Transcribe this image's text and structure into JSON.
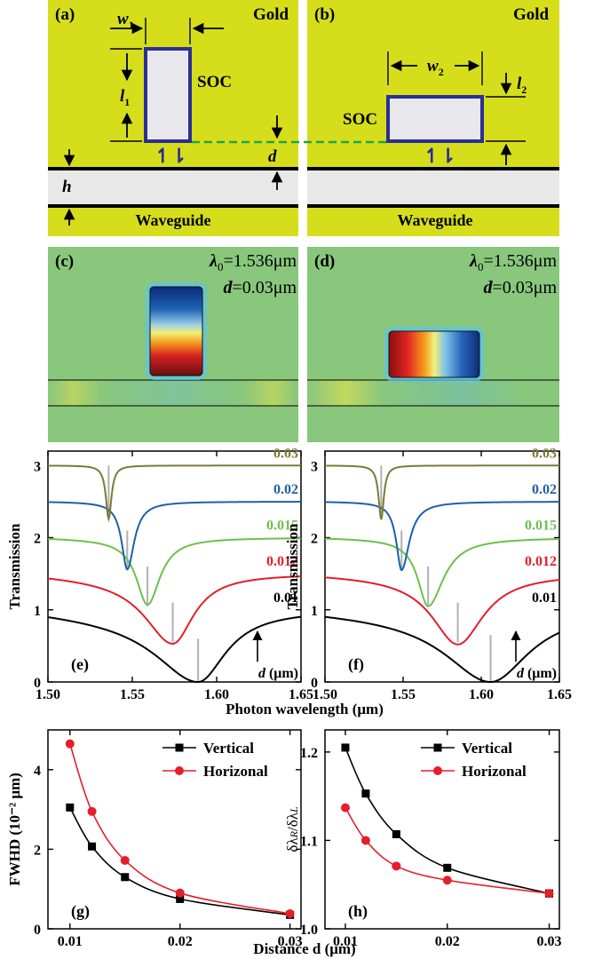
{
  "colors": {
    "gold": "#d6de1c",
    "soc_border": "#2c2f92",
    "gap_line": "#1aa84a",
    "field_bg": "#88c77c",
    "grey_tick": "#b0b0b0",
    "black": "#000000",
    "red": "#e41e2a",
    "green": "#6cc04a",
    "blue": "#1f5fae",
    "olive": "#7d7a36"
  },
  "panel_a": {
    "tag": "(a)",
    "material": "Gold",
    "w_sym": "w",
    "w_sub": "1",
    "l_sym": "l",
    "l_sub": "1",
    "soc": "SOC",
    "h": "h",
    "d": "d",
    "waveguide": "Waveguide",
    "arrows": "↿⇂"
  },
  "panel_b": {
    "tag": "(b)",
    "material": "Gold",
    "w_sym": "w",
    "w_sub": "2",
    "l_sym": "l",
    "l_sub": "2",
    "soc": "SOC",
    "waveguide": "Waveguide",
    "arrows": "↿⇂"
  },
  "panel_c": {
    "tag": "(c)",
    "lambda_sym": "λ",
    "lambda_sub": "0",
    "lambda_val": "=1.536μm",
    "d_sym": "d",
    "d_val": "=0.03μm"
  },
  "panel_d": {
    "tag": "(d)",
    "lambda_sym": "λ",
    "lambda_sub": "0",
    "lambda_val": "=1.536μm",
    "d_sym": "d",
    "d_val": "=0.03μm"
  },
  "shared_xlabel": "Photon wavelength (μm)",
  "shared_distance_label": "Distance d (μm)",
  "chart_data": [
    {
      "panel": "(e)",
      "type": "line",
      "ylabel": "Transmission",
      "xlim": [
        1.5,
        1.65
      ],
      "ylim": [
        0,
        3.2
      ],
      "xticks": [
        "1.50",
        "1.55",
        "1.60",
        "1.65"
      ],
      "yticks": [
        "0",
        "1",
        "2",
        "3"
      ],
      "annotation": "d (μm)",
      "series": [
        {
          "name": "0.01",
          "color": "#000000",
          "offset": 0,
          "baseline": 1.0,
          "left_dip": 0.15,
          "center": 1.589,
          "width_left": 0.03,
          "width_right": 0.02,
          "min": 0.0
        },
        {
          "name": "0.012",
          "color": "#e41e2a",
          "offset": 0.5,
          "baseline": 1.0,
          "left_dip": 0.08,
          "center": 1.574,
          "width_left": 0.02,
          "width_right": 0.015,
          "min": 0.03
        },
        {
          "name": "0.015",
          "color": "#6cc04a",
          "offset": 1.0,
          "baseline": 1.0,
          "left_dip": 0.03,
          "center": 1.559,
          "width_left": 0.008,
          "width_right": 0.009,
          "min": 0.07
        },
        {
          "name": "0.02",
          "color": "#1f5fae",
          "offset": 1.5,
          "baseline": 1.0,
          "left_dip": 0.01,
          "center": 1.547,
          "width_left": 0.004,
          "width_right": 0.005,
          "min": 0.06
        },
        {
          "name": "0.03",
          "color": "#7d7a36",
          "offset": 2.0,
          "baseline": 1.0,
          "left_dip": 0.0,
          "center": 1.536,
          "width_left": 0.002,
          "width_right": 0.002,
          "min": 0.26
        }
      ],
      "markers": [
        {
          "x": 1.536,
          "y_from": 2.3,
          "y_to": 3.0
        },
        {
          "x": 1.547,
          "y_from": 1.55,
          "y_to": 2.1
        },
        {
          "x": 1.559,
          "y_from": 1.05,
          "y_to": 1.6
        },
        {
          "x": 1.574,
          "y_from": 0.55,
          "y_to": 1.1
        },
        {
          "x": 1.589,
          "y_from": 0.0,
          "y_to": 0.6
        }
      ]
    },
    {
      "panel": "(f)",
      "type": "line",
      "ylabel": "Transmission",
      "xlim": [
        1.5,
        1.65
      ],
      "ylim": [
        0,
        3.2
      ],
      "xticks": [
        "1.50",
        "1.55",
        "1.60",
        "1.65"
      ],
      "yticks": [
        "0",
        "1",
        "2",
        "3"
      ],
      "annotation": "d (μm)",
      "series": [
        {
          "name": "0.01",
          "color": "#000000",
          "offset": 0,
          "baseline": 1.0,
          "left_dip": 0.1,
          "center": 1.606,
          "width_left": 0.035,
          "width_right": 0.03,
          "min": 0.0
        },
        {
          "name": "0.012",
          "color": "#e41e2a",
          "offset": 0.5,
          "baseline": 1.0,
          "left_dip": 0.05,
          "center": 1.585,
          "width_left": 0.02,
          "width_right": 0.02,
          "min": 0.02
        },
        {
          "name": "0.015",
          "color": "#6cc04a",
          "offset": 1.0,
          "baseline": 1.0,
          "left_dip": 0.02,
          "center": 1.566,
          "width_left": 0.008,
          "width_right": 0.012,
          "min": 0.05
        },
        {
          "name": "0.02",
          "color": "#1f5fae",
          "offset": 1.5,
          "baseline": 1.0,
          "left_dip": 0.01,
          "center": 1.549,
          "width_left": 0.004,
          "width_right": 0.006,
          "min": 0.05
        },
        {
          "name": "0.03",
          "color": "#7d7a36",
          "offset": 2.0,
          "baseline": 1.0,
          "left_dip": 0.0,
          "center": 1.536,
          "width_left": 0.002,
          "width_right": 0.002,
          "min": 0.25
        }
      ],
      "markers": [
        {
          "x": 1.536,
          "y_from": 2.3,
          "y_to": 3.0
        },
        {
          "x": 1.549,
          "y_from": 1.55,
          "y_to": 2.1
        },
        {
          "x": 1.566,
          "y_from": 1.05,
          "y_to": 1.6
        },
        {
          "x": 1.585,
          "y_from": 0.55,
          "y_to": 1.1
        },
        {
          "x": 1.606,
          "y_from": 0.0,
          "y_to": 0.65
        }
      ]
    },
    {
      "panel": "(g)",
      "type": "line",
      "ylabel": "FWHD (10⁻² μm)",
      "xlim": [
        0.008,
        0.031
      ],
      "ylim": [
        0,
        5
      ],
      "xticks": [
        "0.01",
        "0.02",
        "0.03"
      ],
      "yticks": [
        "0",
        "2",
        "4"
      ],
      "legend_position": "top-right",
      "series": [
        {
          "name": "Vertical",
          "color": "#000000",
          "marker": "square",
          "x": [
            0.01,
            0.012,
            0.015,
            0.02,
            0.03
          ],
          "y": [
            3.05,
            2.07,
            1.3,
            0.75,
            0.35
          ]
        },
        {
          "name": "Horizonal",
          "color": "#e41e2a",
          "marker": "circle",
          "x": [
            0.01,
            0.012,
            0.015,
            0.02,
            0.03
          ],
          "y": [
            4.65,
            2.95,
            1.72,
            0.9,
            0.38
          ]
        }
      ]
    },
    {
      "panel": "(h)",
      "type": "line",
      "ylabel": "δλR/δλL",
      "xlim": [
        0.008,
        0.031
      ],
      "ylim": [
        1.0,
        1.225
      ],
      "xticks": [
        "0.01",
        "0.02",
        "0.03"
      ],
      "yticks": [
        "1.0",
        "1.1",
        "1.2"
      ],
      "legend_position": "top-right",
      "series": [
        {
          "name": "Vertical",
          "color": "#000000",
          "marker": "square",
          "x": [
            0.01,
            0.012,
            0.015,
            0.02,
            0.03
          ],
          "y": [
            1.205,
            1.153,
            1.107,
            1.069,
            1.04
          ]
        },
        {
          "name": "Horizonal",
          "color": "#e41e2a",
          "marker": "circle",
          "x": [
            0.01,
            0.012,
            0.015,
            0.02,
            0.03
          ],
          "y": [
            1.137,
            1.1,
            1.071,
            1.055,
            1.04
          ]
        }
      ]
    }
  ]
}
